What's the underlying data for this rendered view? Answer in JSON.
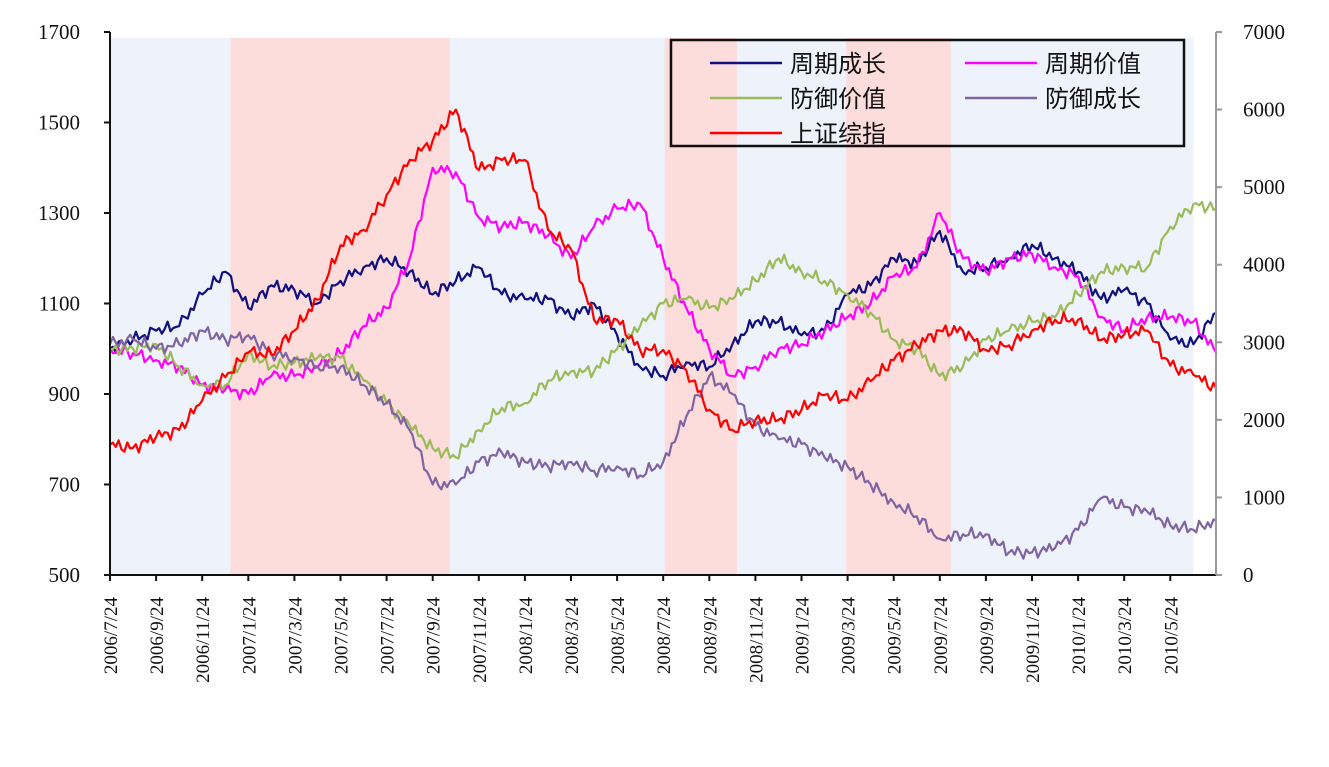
{
  "chart_data": {
    "type": "line",
    "title": "",
    "xlabel": "",
    "ylabel_left": "",
    "ylabel_right": "",
    "ylim_left": [
      500,
      1700
    ],
    "ylim_right": [
      0,
      7000
    ],
    "yticks_left": [
      "500",
      "700",
      "900",
      "1100",
      "1300",
      "1500",
      "1700"
    ],
    "yticks_right": [
      "0",
      "1000",
      "2000",
      "3000",
      "4000",
      "5000",
      "6000",
      "7000"
    ],
    "xticks": [
      "2006/7/24",
      "2006/9/24",
      "2006/11/24",
      "2007/1/24",
      "2007/3/24",
      "2007/5/24",
      "2007/7/24",
      "2007/9/24",
      "2007/11/24",
      "2008/1/24",
      "2008/3/24",
      "2008/5/24",
      "2008/7/24",
      "2008/9/24",
      "2008/11/24",
      "2009/1/24",
      "2009/3/24",
      "2009/5/24",
      "2009/7/24",
      "2009/9/24",
      "2009/11/24",
      "2010/1/24",
      "2010/3/24",
      "2010/5/24"
    ],
    "grid": false,
    "legend_placement": "top-right",
    "background_color": "#eef2fa",
    "shaded_color": "#fddcdc",
    "shaded_periods": [
      [
        "2006/12/31",
        "2007/10/16"
      ],
      [
        "2008/7/26",
        "2008/10/30"
      ],
      [
        "2009/3/22",
        "2009/8/8"
      ]
    ],
    "x": [
      "2006/7/24",
      "2006/8/24",
      "2006/9/24",
      "2006/10/24",
      "2006/11/24",
      "2006/12/24",
      "2007/1/24",
      "2007/2/24",
      "2007/3/24",
      "2007/4/24",
      "2007/5/24",
      "2007/6/24",
      "2007/7/24",
      "2007/8/24",
      "2007/9/24",
      "2007/10/24",
      "2007/11/24",
      "2007/12/24",
      "2008/1/24",
      "2008/2/24",
      "2008/3/24",
      "2008/4/24",
      "2008/5/24",
      "2008/6/24",
      "2008/7/24",
      "2008/8/24",
      "2008/9/24",
      "2008/10/24",
      "2008/11/24",
      "2008/12/24",
      "2009/1/24",
      "2009/2/24",
      "2009/3/24",
      "2009/4/24",
      "2009/5/24",
      "2009/6/24",
      "2009/7/24",
      "2009/8/24",
      "2009/9/24",
      "2009/10/24",
      "2009/11/24",
      "2009/12/24",
      "2010/1/24",
      "2010/2/24",
      "2010/3/24",
      "2010/4/24",
      "2010/5/24",
      "2010/6/24",
      "2010/7/24"
    ],
    "series": [
      {
        "name": "周期成长",
        "axis": "left",
        "color": "#10107e",
        "values": [
          1000,
          1020,
          1040,
          1050,
          1120,
          1170,
          1090,
          1140,
          1130,
          1100,
          1150,
          1180,
          1200,
          1170,
          1120,
          1150,
          1180,
          1120,
          1110,
          1110,
          1070,
          1100,
          1030,
          960,
          940,
          970,
          960,
          1010,
          1060,
          1060,
          1030,
          1040,
          1120,
          1140,
          1200,
          1190,
          1260,
          1170,
          1180,
          1200,
          1230,
          1200,
          1170,
          1110,
          1130,
          1100,
          1020,
          1010,
          1080
        ]
      },
      {
        "name": "周期价值",
        "axis": "left",
        "color": "#ff00ff",
        "values": [
          1000,
          990,
          975,
          960,
          920,
          910,
          900,
          940,
          940,
          960,
          990,
          1050,
          1090,
          1200,
          1400,
          1390,
          1290,
          1270,
          1280,
          1250,
          1200,
          1270,
          1310,
          1320,
          1200,
          1090,
          1000,
          940,
          960,
          1000,
          1010,
          1040,
          1070,
          1100,
          1160,
          1180,
          1300,
          1200,
          1170,
          1200,
          1210,
          1180,
          1160,
          1070,
          1040,
          1070,
          1070,
          1060,
          990
        ]
      },
      {
        "name": "防御价值",
        "axis": "left",
        "color": "#9bbb59",
        "values": [
          1000,
          1000,
          1010,
          960,
          920,
          920,
          990,
          960,
          970,
          980,
          980,
          930,
          880,
          830,
          780,
          760,
          820,
          870,
          880,
          930,
          950,
          950,
          1000,
          1050,
          1100,
          1110,
          1090,
          1110,
          1150,
          1200,
          1170,
          1150,
          1120,
          1080,
          1020,
          1000,
          940,
          960,
          1020,
          1040,
          1060,
          1070,
          1120,
          1170,
          1180,
          1180,
          1270,
          1320,
          1310
        ]
      },
      {
        "name": "防御成长",
        "axis": "left",
        "color": "#8064a2",
        "values": [
          1010,
          1020,
          1000,
          1010,
          1040,
          1020,
          1030,
          990,
          980,
          960,
          960,
          920,
          880,
          820,
          700,
          700,
          750,
          770,
          750,
          740,
          750,
          730,
          740,
          720,
          750,
          850,
          940,
          900,
          830,
          800,
          790,
          760,
          740,
          700,
          660,
          630,
          580,
          590,
          590,
          550,
          550,
          560,
          600,
          670,
          650,
          640,
          610,
          600,
          620
        ]
      },
      {
        "name": "上证综指",
        "axis": "right",
        "color": "#ff0000",
        "values": [
          1680,
          1640,
          1780,
          1870,
          2250,
          2550,
          2870,
          2840,
          3150,
          3550,
          4250,
          4450,
          4900,
          5350,
          5600,
          6000,
          5220,
          5350,
          5350,
          4450,
          4200,
          3290,
          3290,
          2900,
          2900,
          2640,
          2130,
          1870,
          2000,
          2000,
          2130,
          2320,
          2250,
          2500,
          2770,
          2960,
          3150,
          3150,
          2900,
          2960,
          3150,
          3290,
          3290,
          3030,
          3100,
          3150,
          2700,
          2580,
          2400
        ]
      }
    ],
    "legend_order": [
      0,
      1,
      2,
      3,
      4
    ]
  }
}
